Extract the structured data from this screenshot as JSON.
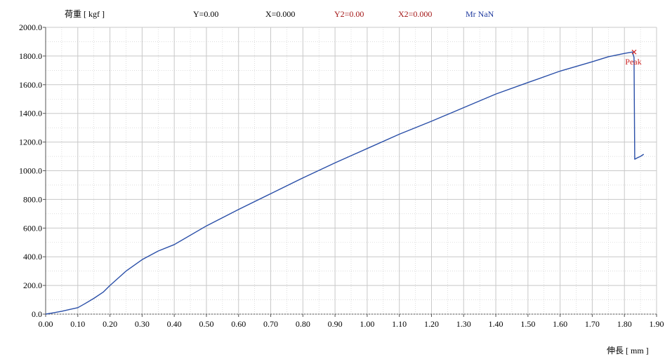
{
  "chart_data": {
    "type": "line",
    "ylabel": "荷重 [ kgf ]",
    "xlabel": "伸長 [ mm ]",
    "xlim": [
      0.0,
      1.9
    ],
    "ylim": [
      0.0,
      2000.0
    ],
    "x_ticks": [
      "0.00",
      "0.10",
      "0.20",
      "0.30",
      "0.40",
      "0.50",
      "0.60",
      "0.70",
      "0.80",
      "0.90",
      "1.00",
      "1.10",
      "1.20",
      "1.30",
      "1.40",
      "1.50",
      "1.60",
      "1.70",
      "1.80",
      "1.90"
    ],
    "y_ticks": [
      "0.0",
      "200.0",
      "400.0",
      "600.0",
      "800.0",
      "1000.0",
      "1200.0",
      "1400.0",
      "1600.0",
      "1800.0",
      "2000.0"
    ],
    "grid": true,
    "series": [
      {
        "color": "#2a4fa8",
        "x": [
          0.0,
          0.02,
          0.05,
          0.08,
          0.1,
          0.12,
          0.15,
          0.18,
          0.2,
          0.25,
          0.3,
          0.35,
          0.4,
          0.5,
          0.6,
          0.7,
          0.8,
          0.9,
          1.0,
          1.1,
          1.2,
          1.3,
          1.4,
          1.5,
          1.6,
          1.7,
          1.75,
          1.8,
          1.825,
          1.83,
          1.832,
          1.84,
          1.85,
          1.86
        ],
        "y": [
          0,
          8,
          20,
          35,
          45,
          70,
          110,
          155,
          200,
          300,
          380,
          440,
          485,
          615,
          730,
          840,
          950,
          1055,
          1155,
          1255,
          1345,
          1440,
          1535,
          1615,
          1695,
          1760,
          1795,
          1818,
          1828,
          1790,
          1080,
          1090,
          1100,
          1115
        ]
      }
    ],
    "annotations": [
      {
        "text": "Peak",
        "x": 1.83,
        "y": 1828,
        "color": "#cc2222"
      }
    ]
  },
  "status": {
    "y": "Y=0.00",
    "x": "X=0.000",
    "y2": "Y2=0.00",
    "x2": "X2=0.000",
    "mr": "Mr NaN"
  },
  "colors": {
    "grid": "#c8c8c8",
    "axis": "#555555",
    "line": "#2a4fa8",
    "status_black": "#000000",
    "status_red": "#a31515",
    "status_blue": "#1f3a9e"
  }
}
